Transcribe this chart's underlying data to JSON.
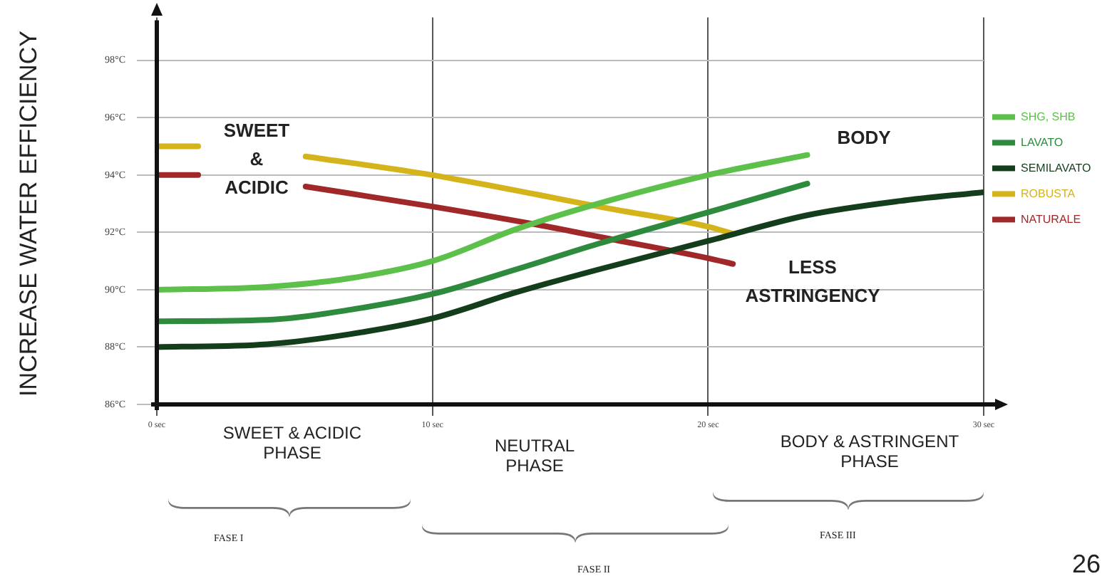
{
  "chart_data": {
    "type": "line",
    "ylabel": "INCREASE WATER EFFICIENCY",
    "xlim": [
      0,
      30
    ],
    "xticks": [
      {
        "value": 0,
        "label": "0 sec"
      },
      {
        "value": 10,
        "label": "10 sec"
      },
      {
        "value": 20,
        "label": "20 sec"
      },
      {
        "value": 30,
        "label": "30 sec"
      }
    ],
    "ylim": [
      86,
      99.5
    ],
    "yticks": [
      {
        "value": 86,
        "label": "86°C"
      },
      {
        "value": 88,
        "label": "88°C"
      },
      {
        "value": 90,
        "label": "90°C"
      },
      {
        "value": 92,
        "label": "92°C"
      },
      {
        "value": 94,
        "label": "94°C"
      },
      {
        "value": 96,
        "label": "96°C"
      },
      {
        "value": 98,
        "label": "98°C"
      }
    ],
    "grid": true,
    "legend": "right",
    "marker": "none",
    "line_style": "solid",
    "series": [
      {
        "name": "SHG, SHB",
        "color": "#5cc04a",
        "x": [
          0,
          4,
          7,
          10,
          13,
          16,
          20,
          23.6
        ],
        "values": [
          90.0,
          90.1,
          90.4,
          91.0,
          92.1,
          93.0,
          94.0,
          94.7
        ]
      },
      {
        "name": "LAVATO",
        "color": "#2e8b3e",
        "x": [
          0,
          4,
          7,
          10,
          13,
          16,
          20,
          23.6
        ],
        "values": [
          88.9,
          88.95,
          89.3,
          89.85,
          90.7,
          91.6,
          92.7,
          93.7
        ]
      },
      {
        "name": "SEMILAVATO",
        "color": "#143d1c",
        "x": [
          0,
          4,
          7,
          10,
          13,
          16,
          20,
          23.6,
          27,
          30
        ],
        "values": [
          88.0,
          88.1,
          88.45,
          89.0,
          89.9,
          90.7,
          91.7,
          92.6,
          93.1,
          93.4
        ]
      },
      {
        "name": "ROBUSTA",
        "color": "#d4b41a",
        "x": [
          0,
          1.5,
          3.5,
          5.4,
          10,
          13.9,
          16.3,
          20,
          20.9
        ],
        "values": [
          95.0,
          95.0,
          null,
          94.65,
          94.0,
          93.3,
          92.85,
          92.2,
          91.95
        ]
      },
      {
        "name": "NATURALE",
        "color": "#a02828",
        "x": [
          0,
          1.5,
          3.5,
          5.4,
          10,
          13.9,
          16.3,
          20,
          20.9
        ],
        "values": [
          94.0,
          94.0,
          null,
          93.6,
          92.9,
          92.25,
          91.8,
          91.1,
          90.9
        ]
      }
    ],
    "annotations": [
      "SWEET & ACIDIC",
      "BODY",
      "LESS ASTRINGENCY",
      "SWEET & ACIDIC PHASE",
      "NEUTRAL PHASE",
      "BODY & ASTRINGENT PHASE",
      "FASE I",
      "FASE II",
      "FASE III",
      "26"
    ]
  }
}
